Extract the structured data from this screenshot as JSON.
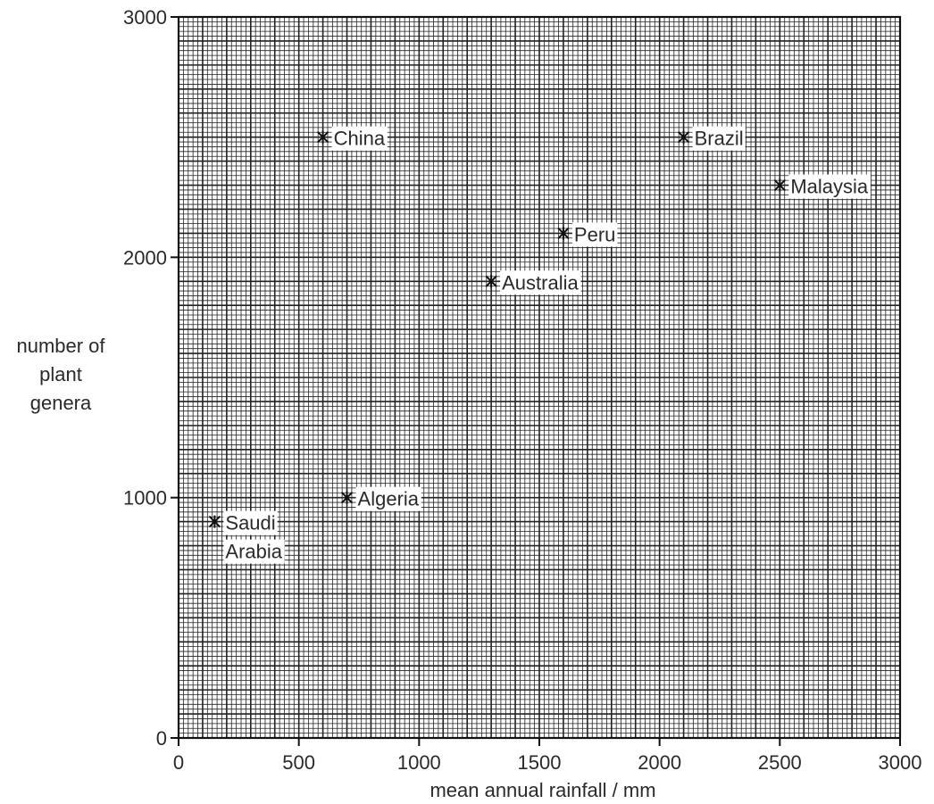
{
  "chart_data": {
    "type": "scatter",
    "title": "",
    "xlabel": "mean annual rainfall / mm",
    "ylabel": [
      "number of",
      "plant",
      "genera"
    ],
    "xlim": [
      0,
      3000
    ],
    "ylim": [
      0,
      3000
    ],
    "x_ticks": [
      "0",
      "500",
      "1000",
      "1500",
      "2000",
      "2500",
      "3000"
    ],
    "y_ticks": [
      "0",
      "1000",
      "2000",
      "3000"
    ],
    "grid": true,
    "marker": "asterisk",
    "points": [
      {
        "label": [
          "China"
        ],
        "x": 600,
        "y": 2500
      },
      {
        "label": [
          "Brazil"
        ],
        "x": 2100,
        "y": 2500
      },
      {
        "label": [
          "Malaysia"
        ],
        "x": 2500,
        "y": 2300
      },
      {
        "label": [
          "Peru"
        ],
        "x": 1600,
        "y": 2100
      },
      {
        "label": [
          "Australia"
        ],
        "x": 1300,
        "y": 1900
      },
      {
        "label": [
          "Algeria"
        ],
        "x": 700,
        "y": 1000
      },
      {
        "label": [
          "Saudi",
          "Arabia"
        ],
        "x": 150,
        "y": 900
      }
    ]
  }
}
